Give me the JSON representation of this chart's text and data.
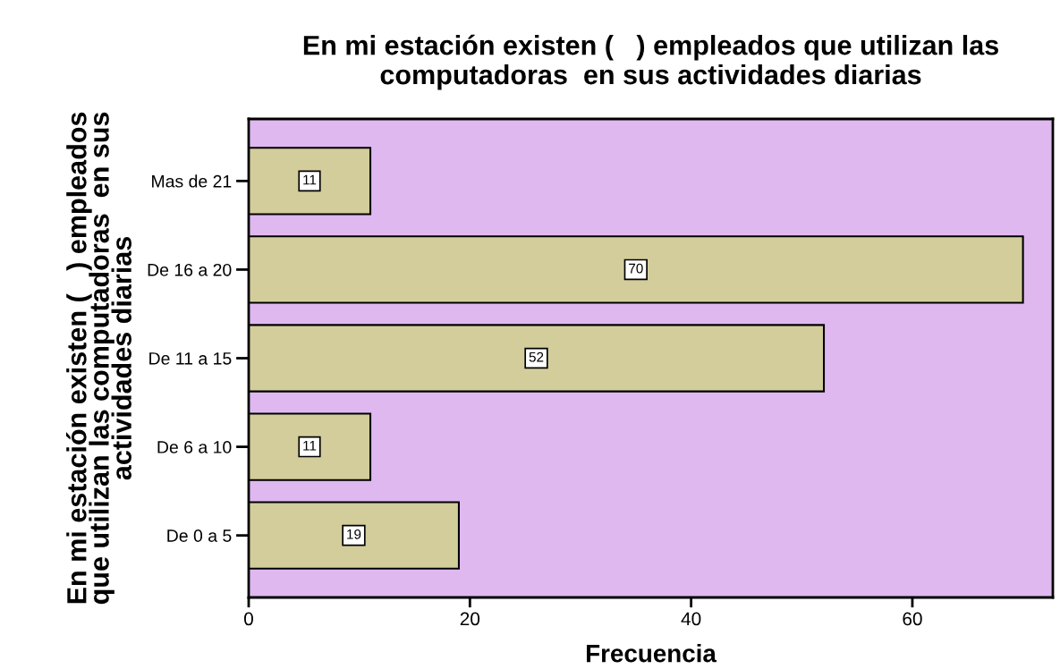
{
  "chart_data": {
    "type": "bar",
    "orientation": "horizontal",
    "title": "En mi estación existen (   ) empleados que utilizan las\ncomputadoras  en sus actividades diarias",
    "xlabel": "Frecuencia",
    "ylabel": "En mi estación existen (   ) empleados\nque utilizan las computadoras  en sus\nactividades diarias",
    "categories": [
      "Mas de 21",
      "De 16 a 20",
      "De 11 a 15",
      "De 6 a 10",
      "De 0 a 5"
    ],
    "values": [
      11,
      70,
      52,
      11,
      19
    ],
    "color": "#d3cd9c",
    "xlim": [
      0,
      72.7
    ],
    "xticks": [
      0,
      20,
      40,
      60
    ],
    "data_labels": true,
    "grid": false
  }
}
